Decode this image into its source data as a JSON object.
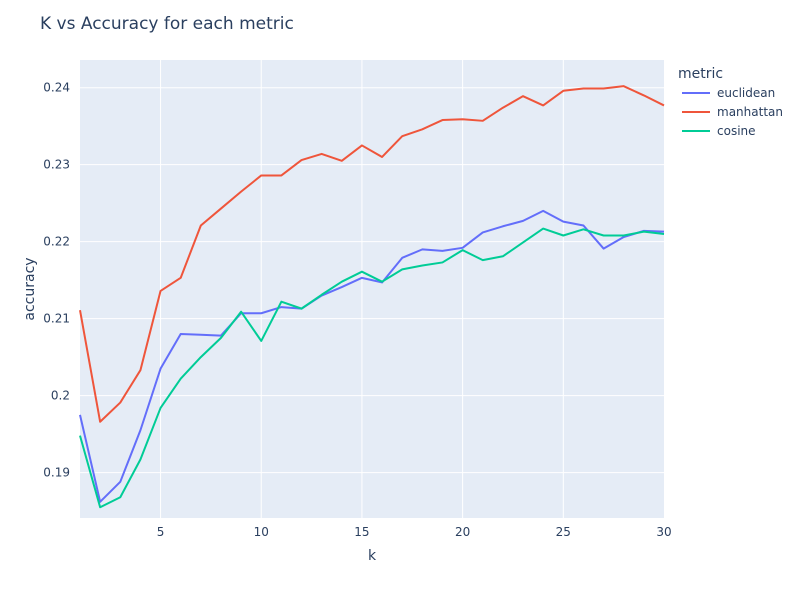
{
  "chart_data": {
    "type": "line",
    "title": "K vs Accuracy for each metric",
    "xlabel": "k",
    "ylabel": "accuracy",
    "xlim": [
      1,
      30
    ],
    "ylim": [
      0.1841,
      0.2436
    ],
    "x_ticks": [
      5,
      10,
      15,
      20,
      25,
      30
    ],
    "y_ticks": [
      0.19,
      0.2,
      0.21,
      0.22,
      0.23,
      0.24
    ],
    "grid": true,
    "legend_title": "metric",
    "legend_position": "top-right outside",
    "x": [
      1,
      2,
      3,
      4,
      5,
      6,
      7,
      8,
      9,
      10,
      11,
      12,
      13,
      14,
      15,
      16,
      17,
      18,
      19,
      20,
      21,
      22,
      23,
      24,
      25,
      26,
      27,
      28,
      29,
      30
    ],
    "series": [
      {
        "name": "euclidean",
        "color": "#636efa",
        "values": [
          0.1975,
          0.1862,
          0.1888,
          0.1955,
          0.2035,
          0.208,
          0.2079,
          0.2078,
          0.2107,
          0.2107,
          0.2115,
          0.2113,
          0.213,
          0.2141,
          0.2153,
          0.2147,
          0.2179,
          0.219,
          0.2188,
          0.2192,
          0.2212,
          0.222,
          0.2227,
          0.224,
          0.2226,
          0.2221,
          0.2191,
          0.2206,
          0.2214,
          0.2213
        ]
      },
      {
        "name": "manhattan",
        "color": "#ef553b",
        "values": [
          0.2111,
          0.1966,
          0.1991,
          0.2033,
          0.2136,
          0.2153,
          0.2221,
          0.2243,
          0.2265,
          0.2286,
          0.2286,
          0.2306,
          0.2314,
          0.2305,
          0.2325,
          0.231,
          0.2337,
          0.2346,
          0.2358,
          0.2359,
          0.2357,
          0.2374,
          0.2389,
          0.2377,
          0.2396,
          0.2399,
          0.2399,
          0.2402,
          0.239,
          0.2377
        ]
      },
      {
        "name": "cosine",
        "color": "#00cc96",
        "values": [
          0.1948,
          0.1855,
          0.1868,
          0.1917,
          0.1984,
          0.2022,
          0.205,
          0.2075,
          0.2109,
          0.2071,
          0.2122,
          0.2113,
          0.2131,
          0.2148,
          0.2161,
          0.2148,
          0.2164,
          0.2169,
          0.2173,
          0.2189,
          0.2176,
          0.2181,
          0.2199,
          0.2217,
          0.2208,
          0.2216,
          0.2208,
          0.2208,
          0.2213,
          0.221
        ]
      }
    ]
  }
}
